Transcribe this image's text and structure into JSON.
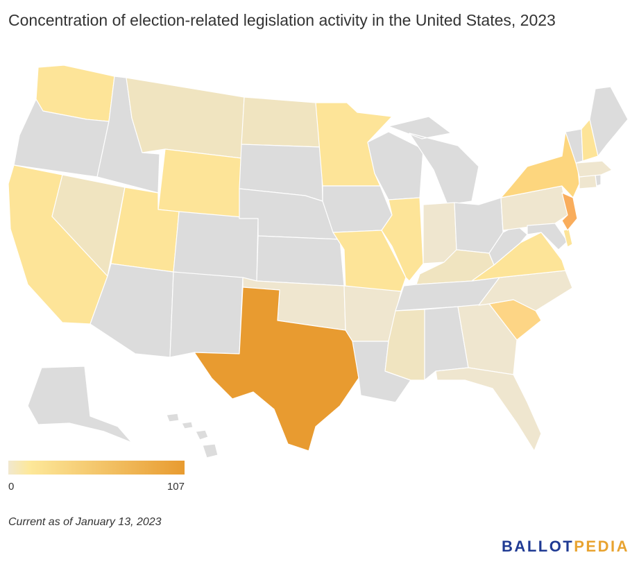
{
  "title": "Concentration of election-related legislation activity in the United States, 2023",
  "legend": {
    "min": "0",
    "max": "107",
    "color_low": "#f1e8cf",
    "color_mid": "#fde89a",
    "color_high": "#e89b30"
  },
  "note": "Current as of January 13, 2023",
  "brand": {
    "part1": "BALLOT",
    "part2": "PEDIA",
    "color1": "#1f3a93",
    "color2": "#e8a330"
  },
  "colors": {
    "none": "#dcdcdc",
    "tan": "#f0e4c0",
    "beige": "#efe6cf",
    "light_yellow": "#fde79b",
    "yellow": "#fde498",
    "ny": "#fdd67e",
    "sc": "#fdd585",
    "nj": "#f9ad5c",
    "texas": "#e89b30"
  },
  "states": {
    "WA": "yellow",
    "OR": "none",
    "CA": "yellow",
    "NV": "tan",
    "ID": "none",
    "MT": "tan",
    "WY": "yellow",
    "UT": "yellow",
    "AZ": "none",
    "CO": "none",
    "NM": "none",
    "ND": "tan",
    "SD": "none",
    "NE": "none",
    "KS": "none",
    "OK": "beige",
    "TX": "texas",
    "MN": "yellow",
    "IA": "none",
    "MO": "yellow",
    "AR": "beige",
    "LA": "none",
    "WI": "none",
    "IL": "yellow",
    "MI": "none",
    "IN": "beige",
    "OH": "none",
    "KY": "tan",
    "TN": "none",
    "MS": "tan",
    "AL": "none",
    "GA": "beige",
    "FL": "beige",
    "SC": "sc",
    "NC": "beige",
    "VA": "yellow",
    "WV": "none",
    "PA": "beige",
    "NY": "ny",
    "NJ": "nj",
    "DE": "yellow",
    "MD": "none",
    "VT": "none",
    "NH": "yellow",
    "ME": "none",
    "MA": "beige",
    "CT": "beige",
    "RI": "none",
    "AK": "none",
    "HI": "none"
  }
}
